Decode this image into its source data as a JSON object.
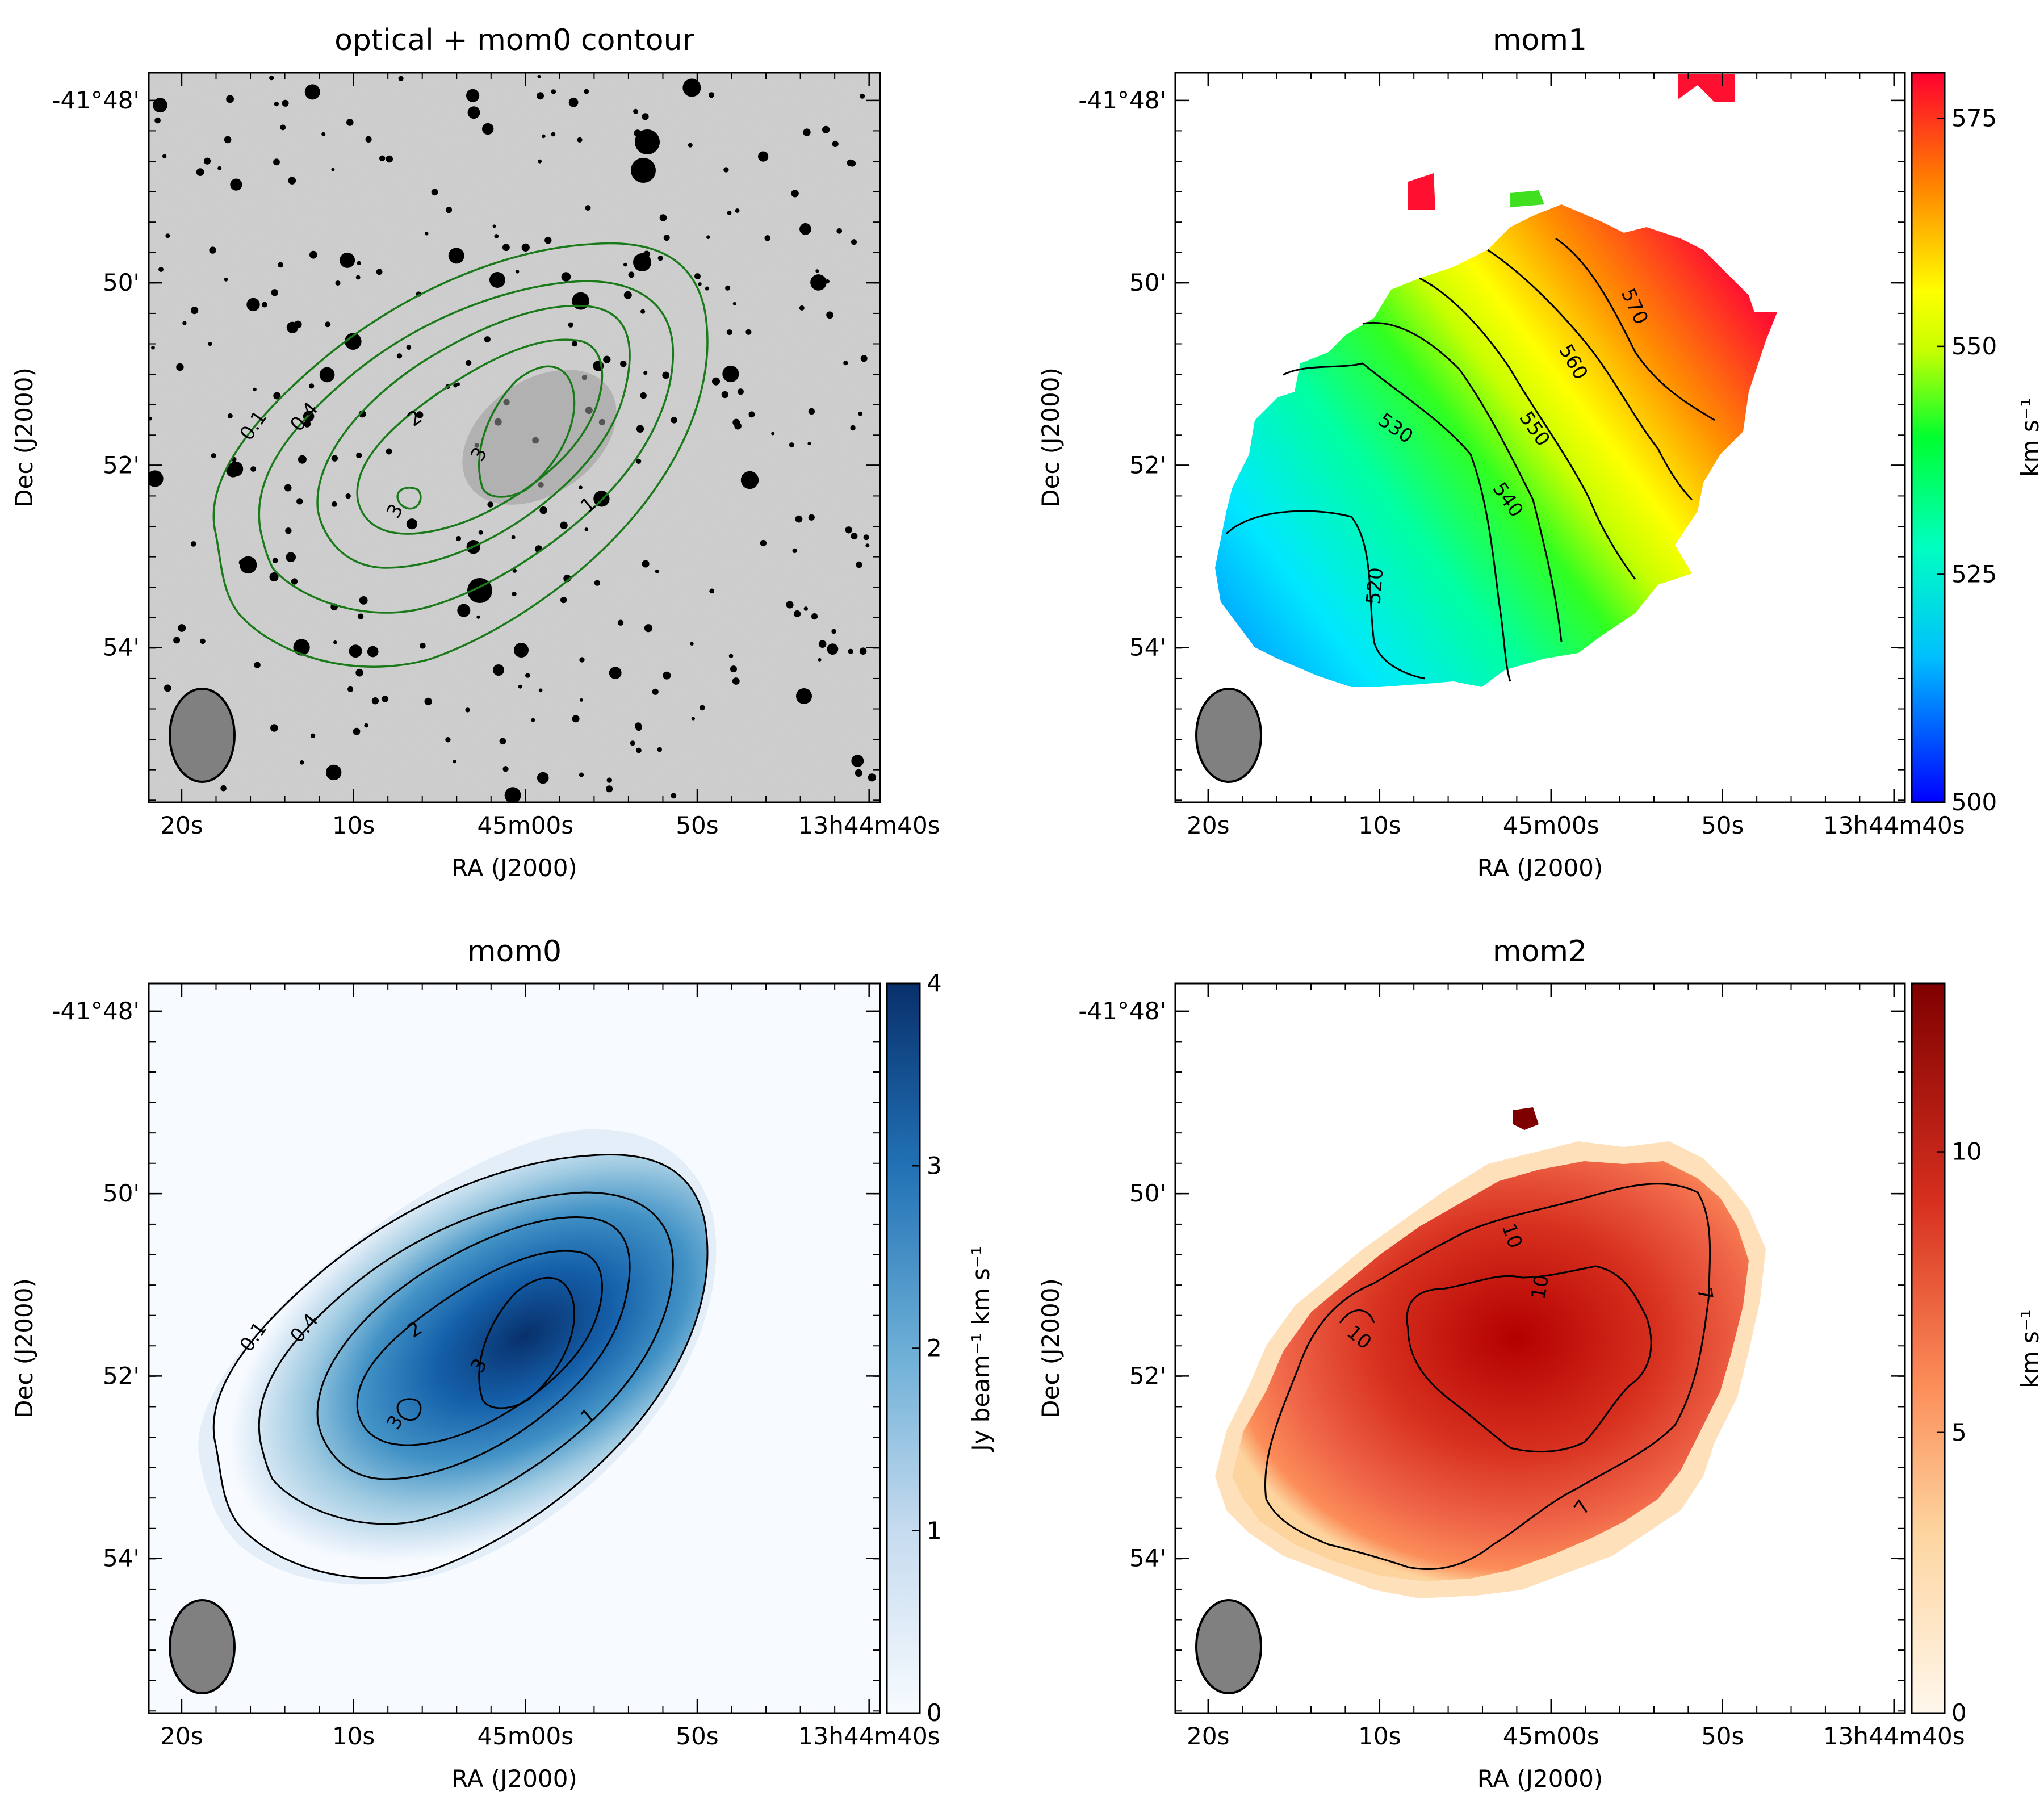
{
  "chart_data": [
    {
      "type": "heatmap",
      "title": "optical + mom0 contour",
      "xlabel": "RA (J2000)",
      "ylabel": "Dec (J2000)",
      "xticks": [
        "20s",
        "10s",
        "45m00s",
        "50s",
        "13h44m40s"
      ],
      "yticks": [
        "-41°48'",
        "50'",
        "52'",
        "54'"
      ],
      "background": "optical greyscale image with stars",
      "contours": {
        "color": "#1a7a1a",
        "levels": [
          0.1,
          0.4,
          1,
          2,
          3
        ],
        "labels": [
          "0.1",
          "0.4",
          "1",
          "2",
          "3",
          "3"
        ]
      },
      "beam": true
    },
    {
      "type": "heatmap",
      "title": "mom1",
      "xlabel": "RA (J2000)",
      "ylabel": "Dec (J2000)",
      "xticks": [
        "20s",
        "10s",
        "45m00s",
        "50s",
        "13h44m40s"
      ],
      "yticks": [
        "-41°48'",
        "50'",
        "52'",
        "54'"
      ],
      "colormap": "gist_rainbow",
      "colorbar": {
        "label": "km s⁻¹",
        "range": [
          500,
          580
        ],
        "ticks": [
          "500",
          "525",
          "550",
          "575"
        ]
      },
      "contours": {
        "color": "#000000",
        "levels": [
          520,
          530,
          540,
          550,
          560,
          570
        ],
        "labels": [
          "520",
          "530",
          "540",
          "550",
          "560",
          "570"
        ]
      },
      "beam": true
    },
    {
      "type": "heatmap",
      "title": "mom0",
      "xlabel": "RA (J2000)",
      "ylabel": "Dec (J2000)",
      "xticks": [
        "20s",
        "10s",
        "45m00s",
        "50s",
        "13h44m40s"
      ],
      "yticks": [
        "-41°48'",
        "50'",
        "52'",
        "54'"
      ],
      "colormap": "Blues",
      "colorbar": {
        "label": "Jy beam⁻¹ km s⁻¹",
        "range": [
          0,
          4
        ],
        "ticks": [
          "0",
          "1",
          "2",
          "3",
          "4"
        ]
      },
      "contours": {
        "color": "#000000",
        "levels": [
          0.1,
          0.4,
          1,
          2,
          3
        ],
        "labels": [
          "0.1",
          "0.4",
          "1",
          "2",
          "3",
          "3"
        ]
      },
      "beam": true
    },
    {
      "type": "heatmap",
      "title": "mom2",
      "xlabel": "RA (J2000)",
      "ylabel": "Dec (J2000)",
      "xticks": [
        "20s",
        "10s",
        "45m00s",
        "50s",
        "13h44m40s"
      ],
      "yticks": [
        "-41°48'",
        "50'",
        "52'",
        "54'"
      ],
      "colormap": "OrRd",
      "colorbar": {
        "label": "km s⁻¹",
        "range": [
          0,
          13
        ],
        "ticks": [
          "0",
          "5",
          "10"
        ]
      },
      "contours": {
        "color": "#000000",
        "levels": [
          7,
          10
        ],
        "labels": [
          "7",
          "7",
          "10",
          "10",
          "10"
        ]
      },
      "beam": true
    }
  ],
  "colors": {
    "optical_bg": "#cfcfcf",
    "green_contour": "#1a7a1a",
    "beam_fill": "#808080",
    "blues_low": "#f7fbff",
    "blues_high": "#08306b",
    "orrd_low": "#fff7ec",
    "orrd_high": "#7f0000"
  }
}
